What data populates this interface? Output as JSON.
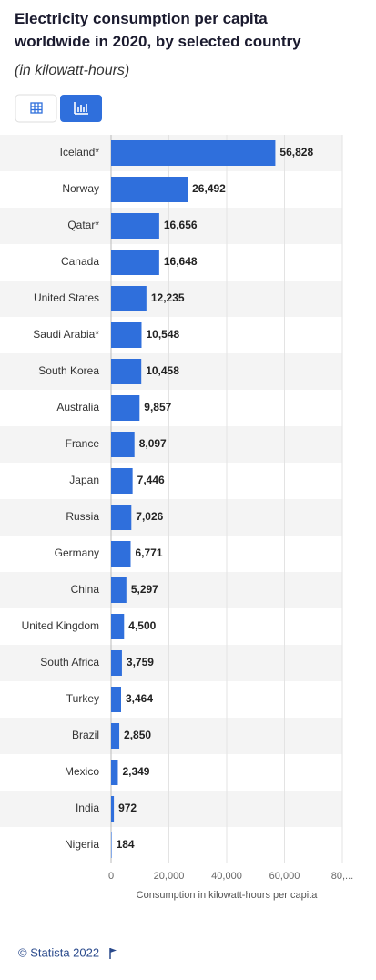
{
  "chart_data": {
    "type": "bar",
    "orientation": "horizontal",
    "title": "Electricity consumption per capita worldwide in 2020, by selected country",
    "subtitle": "(in kilowatt-hours)",
    "categories": [
      "Iceland*",
      "Norway",
      "Qatar*",
      "Canada",
      "United States",
      "Saudi Arabia*",
      "South Korea",
      "Australia",
      "France",
      "Japan",
      "Russia",
      "Germany",
      "China",
      "United Kingdom",
      "South Africa",
      "Turkey",
      "Brazil",
      "Mexico",
      "India",
      "Nigeria"
    ],
    "values": [
      56828,
      26492,
      16656,
      16648,
      12235,
      10548,
      10458,
      9857,
      8097,
      7446,
      7026,
      6771,
      5297,
      4500,
      3759,
      3464,
      2850,
      2349,
      972,
      184
    ],
    "value_labels": [
      "56,828",
      "26,492",
      "16,656",
      "16,648",
      "12,235",
      "10,548",
      "10,458",
      "9,857",
      "8,097",
      "7,446",
      "7,026",
      "6,771",
      "5,297",
      "4,500",
      "3,759",
      "3,464",
      "2,850",
      "2,349",
      "972",
      "184"
    ],
    "color": "#2f6fdc",
    "xlim": [
      0,
      80000
    ],
    "xticks": [
      0,
      {
        "value": 20000,
        "label": "20,000"
      },
      {
        "value": 40000,
        "label": "40,000"
      },
      {
        "value": 60000,
        "label": "60,000"
      },
      {
        "value": 80000,
        "label": "80,..."
      }
    ],
    "xlabel": "Consumption in kilowatt-hours per capita",
    "grid": true
  },
  "footer": "© Statista 2022"
}
